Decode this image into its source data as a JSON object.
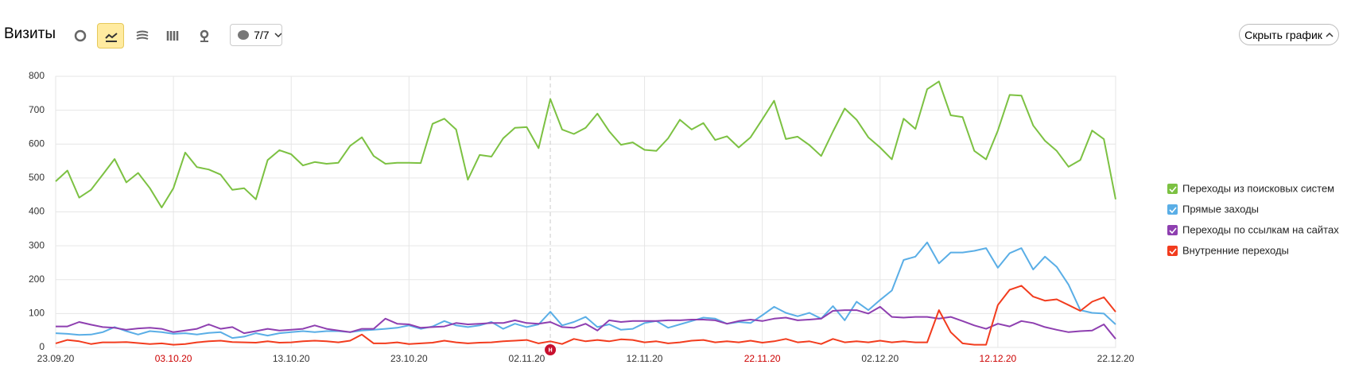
{
  "header": {
    "title": "Визиты",
    "filter": "7/7",
    "hide_button": "Скрыть график",
    "marker": "н"
  },
  "chart_data": {
    "type": "line",
    "categories": [
      "23.09.20",
      null,
      null,
      null,
      null,
      null,
      null,
      null,
      null,
      null,
      "03.10.20",
      null,
      null,
      null,
      null,
      null,
      null,
      null,
      null,
      null,
      "13.10.20",
      null,
      null,
      null,
      null,
      null,
      null,
      null,
      null,
      null,
      "23.10.20",
      null,
      null,
      null,
      null,
      null,
      null,
      null,
      null,
      null,
      "02.11.20",
      null,
      null,
      null,
      null,
      null,
      null,
      null,
      null,
      null,
      "12.11.20",
      null,
      null,
      null,
      null,
      null,
      null,
      null,
      null,
      null,
      "22.11.20",
      null,
      null,
      null,
      null,
      null,
      null,
      null,
      null,
      null,
      "02.12.20",
      null,
      null,
      null,
      null,
      null,
      null,
      null,
      null,
      null,
      "12.12.20",
      null,
      null,
      null,
      null,
      null,
      null,
      null,
      null,
      null,
      "22.12.20"
    ],
    "weekend_label_color": "#cc0000",
    "ylim": [
      0,
      800
    ],
    "yticks": [
      0,
      100,
      200,
      300,
      400,
      500,
      600,
      700,
      800
    ],
    "grid": true,
    "series": [
      {
        "name": "Переходы из поисковых систем",
        "color": "#7cc142",
        "values": [
          490,
          522,
          442,
          465,
          510,
          556,
          487,
          515,
          470,
          413,
          470,
          575,
          532,
          525,
          510,
          465,
          470,
          437,
          553,
          582,
          570,
          537,
          547,
          542,
          545,
          595,
          620,
          565,
          542,
          545,
          545,
          544,
          660,
          675,
          643,
          495,
          568,
          563,
          617,
          648,
          650,
          588,
          733,
          643,
          630,
          648,
          690,
          638,
          598,
          605,
          583,
          580,
          617,
          672,
          643,
          662,
          612,
          623,
          590,
          620,
          673,
          728,
          615,
          622,
          597,
          565,
          637,
          705,
          672,
          620,
          590,
          555,
          675,
          645,
          762,
          785,
          685,
          680,
          580,
          555,
          640,
          745,
          743,
          655,
          610,
          580,
          533,
          553,
          640,
          615,
          437
        ]
      },
      {
        "name": "Прямые заходы",
        "color": "#5aaee6",
        "values": [
          42,
          40,
          37,
          38,
          45,
          60,
          48,
          38,
          48,
          45,
          40,
          42,
          38,
          43,
          45,
          28,
          32,
          42,
          35,
          42,
          45,
          48,
          45,
          48,
          48,
          45,
          50,
          52,
          55,
          58,
          65,
          55,
          62,
          78,
          65,
          60,
          65,
          75,
          55,
          70,
          60,
          68,
          105,
          65,
          75,
          90,
          60,
          68,
          52,
          55,
          72,
          78,
          58,
          68,
          78,
          88,
          85,
          70,
          75,
          72,
          95,
          120,
          102,
          92,
          102,
          85,
          122,
          80,
          135,
          110,
          140,
          168,
          258,
          268,
          310,
          248,
          280,
          280,
          285,
          293,
          235,
          278,
          293,
          230,
          268,
          238,
          185,
          110,
          102,
          100,
          68
        ]
      },
      {
        "name": "Переходы по ссылкам на сайтах",
        "color": "#8e3fb0",
        "values": [
          62,
          62,
          75,
          67,
          60,
          58,
          52,
          56,
          58,
          55,
          45,
          50,
          55,
          68,
          55,
          60,
          42,
          48,
          55,
          50,
          52,
          55,
          65,
          55,
          50,
          45,
          55,
          55,
          85,
          70,
          68,
          58,
          60,
          62,
          72,
          68,
          70,
          72,
          72,
          80,
          72,
          70,
          75,
          60,
          58,
          70,
          50,
          80,
          75,
          78,
          78,
          78,
          80,
          80,
          82,
          82,
          80,
          70,
          78,
          82,
          78,
          85,
          88,
          80,
          82,
          85,
          108,
          110,
          110,
          100,
          120,
          90,
          88,
          90,
          90,
          85,
          90,
          78,
          65,
          55,
          70,
          62,
          78,
          72,
          60,
          52,
          45,
          48,
          50,
          68,
          25
        ]
      },
      {
        "name": "Внутренние переходы",
        "color": "#f23c1e",
        "values": [
          12,
          22,
          18,
          10,
          15,
          15,
          16,
          13,
          10,
          12,
          8,
          10,
          15,
          18,
          20,
          16,
          15,
          14,
          18,
          14,
          15,
          18,
          20,
          18,
          15,
          20,
          38,
          12,
          12,
          15,
          10,
          12,
          14,
          20,
          15,
          12,
          14,
          15,
          18,
          20,
          22,
          12,
          18,
          10,
          25,
          18,
          22,
          18,
          24,
          22,
          15,
          18,
          12,
          15,
          20,
          22,
          15,
          18,
          15,
          20,
          14,
          18,
          25,
          15,
          18,
          10,
          25,
          15,
          18,
          15,
          20,
          15,
          18,
          15,
          15,
          110,
          45,
          12,
          8,
          8,
          125,
          170,
          182,
          150,
          138,
          142,
          125,
          108,
          135,
          148,
          105
        ]
      }
    ]
  }
}
